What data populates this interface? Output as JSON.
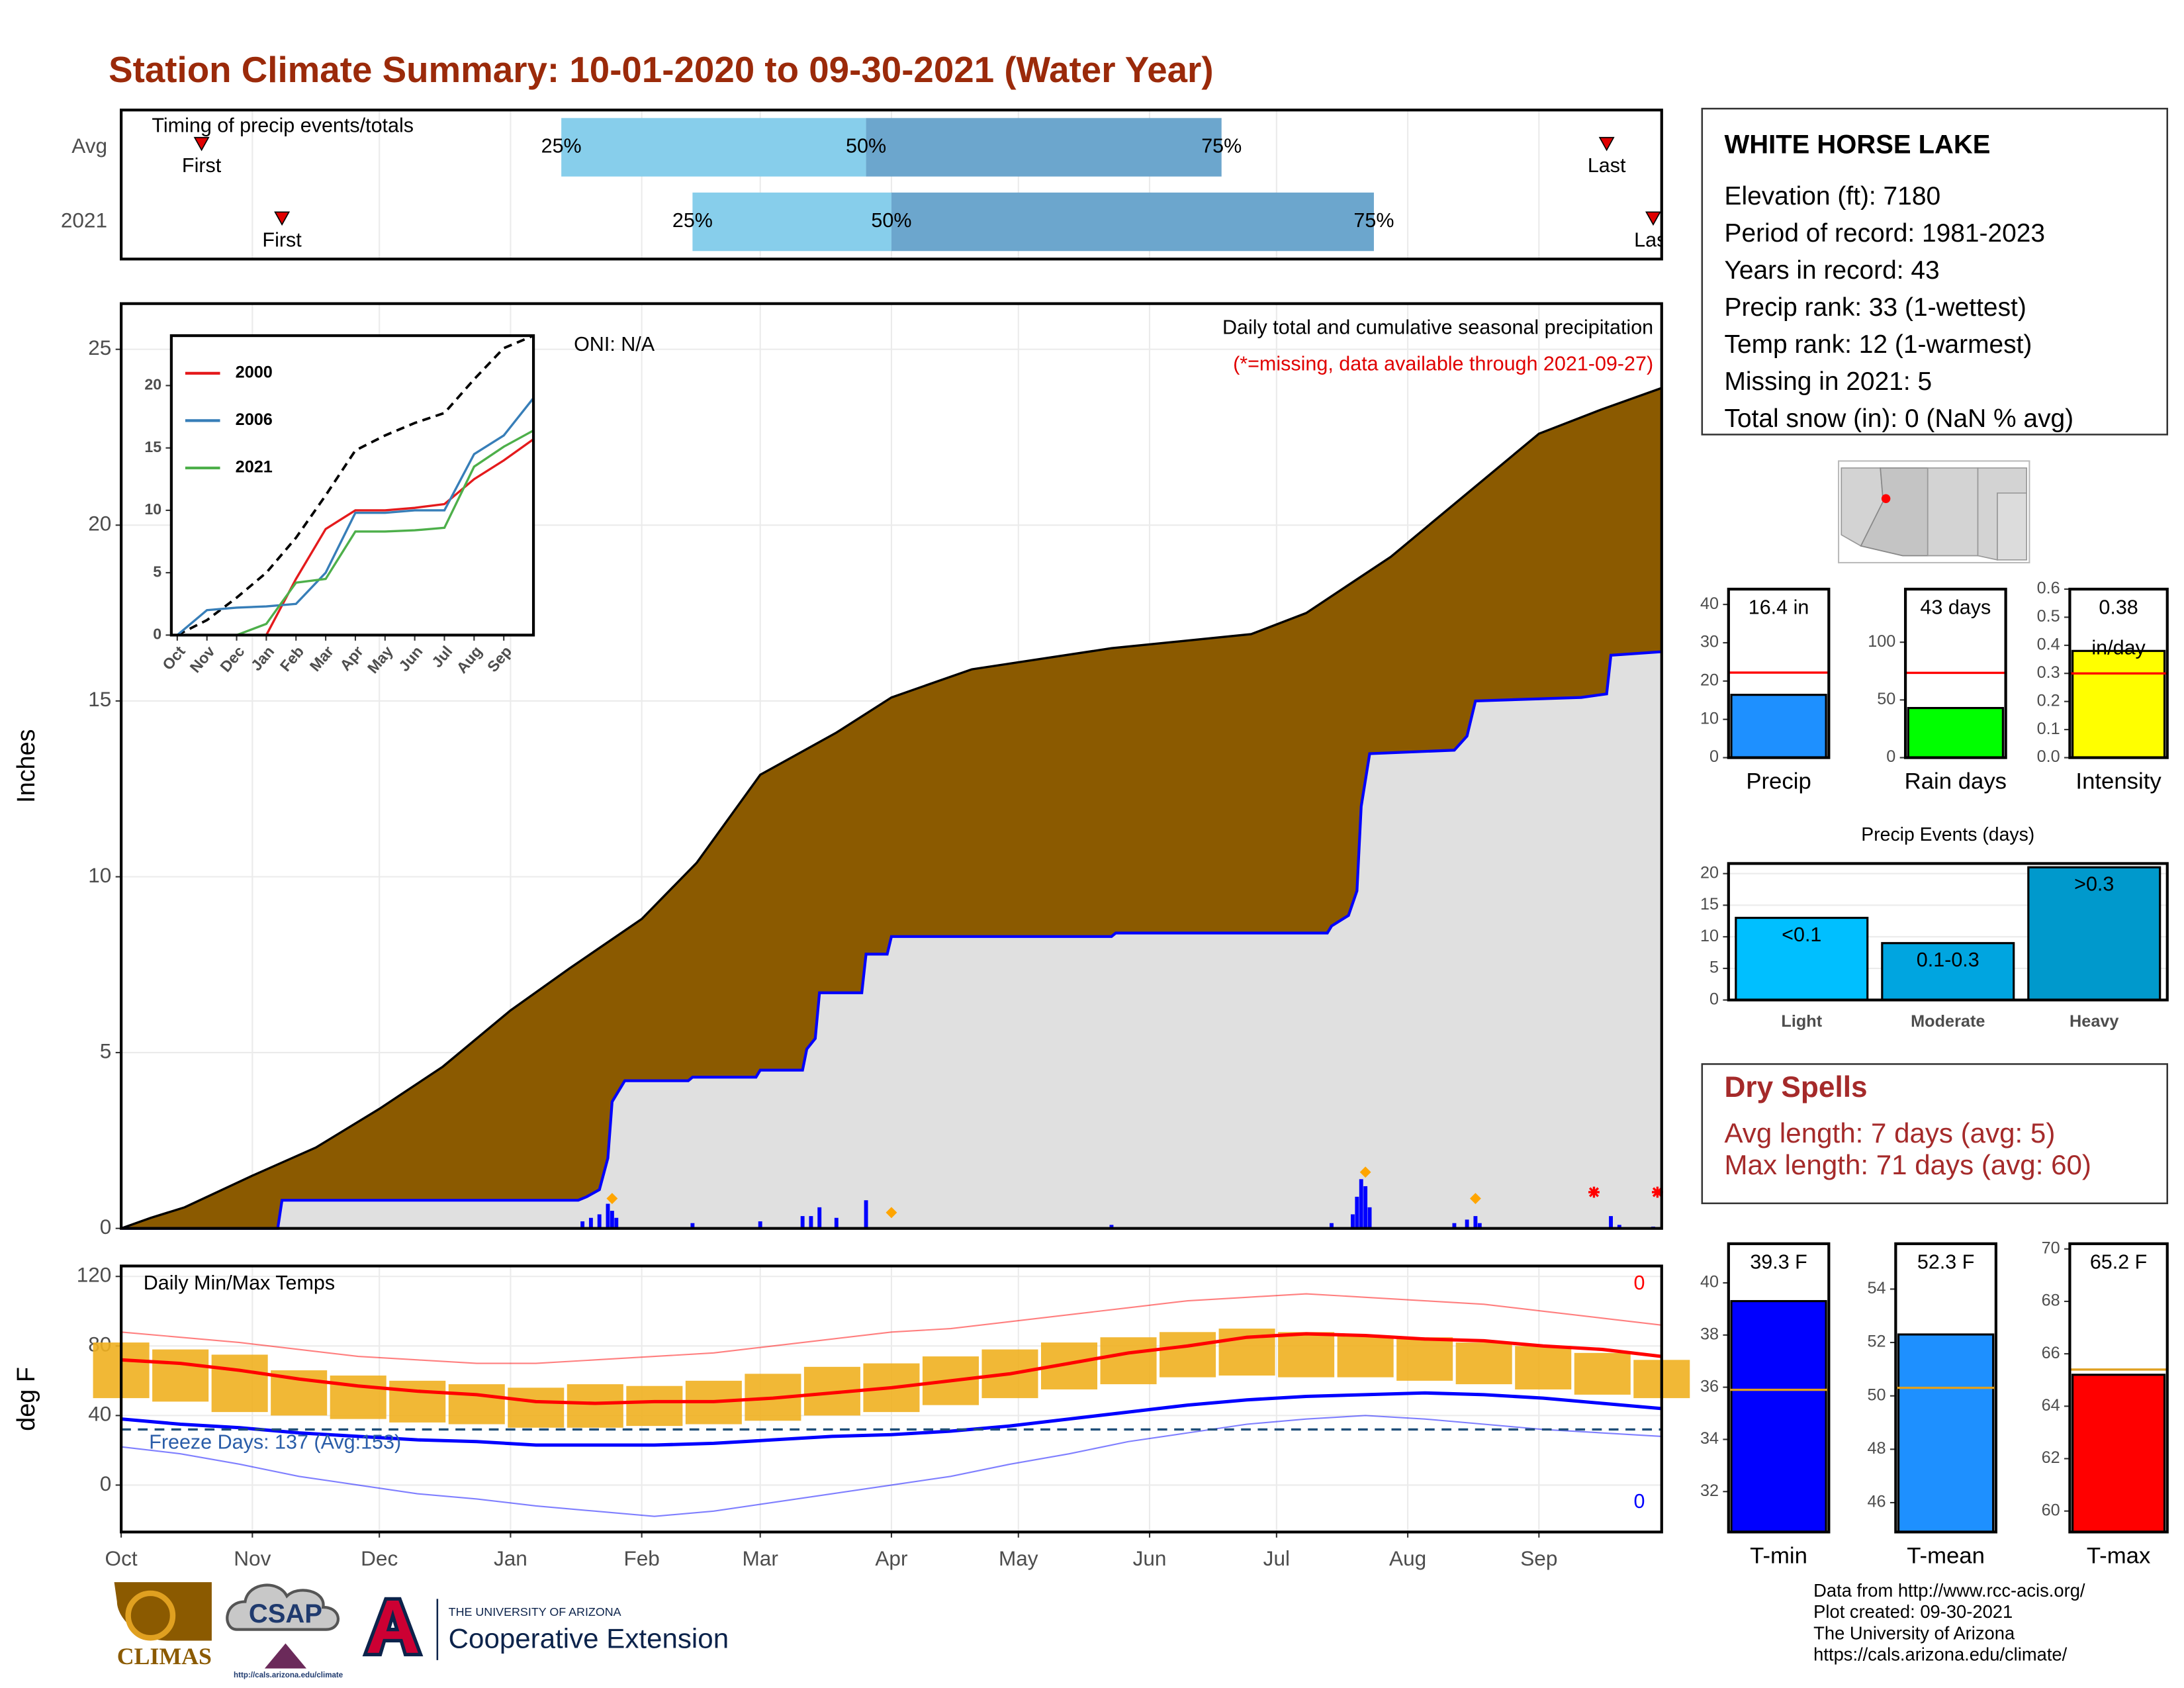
{
  "title": "Station Climate Summary: 10-01-2020 to 09-30-2021 (Water Year)",
  "station": {
    "name": "WHITE HORSE LAKE",
    "lines": [
      "Elevation (ft): 7180",
      "Period of record: 1981-2023",
      "Years in record: 43",
      "Precip rank: 33 (1-wettest)",
      "Temp rank: 12 (1-warmest)",
      "Missing in 2021: 5",
      "Total snow (in): 0 (NaN % avg)"
    ]
  },
  "dry_spells": {
    "title": "Dry Spells",
    "lines": [
      "Avg length: 7 days (avg: 5)",
      "Max length: 71 days (avg: 60)"
    ]
  },
  "footer": [
    "Data from http://www.rcc-acis.org/",
    "Plot created: 09-30-2021",
    "The University of Arizona",
    "https://cals.arizona.edu/climate/"
  ],
  "logos": {
    "climas": "CLIMAS",
    "csap": "CSAP",
    "csap_url": "http://cals.arizona.edu/climate",
    "ua": "THE UNIVERSITY OF ARIZONA",
    "extension": "Cooperative Extension"
  },
  "chart_data": [
    {
      "type": "timing",
      "title": "Timing of precip events/totals",
      "categories": [
        "Avg",
        "2021"
      ],
      "first": [
        19,
        38
      ],
      "q25": [
        104,
        135
      ],
      "q50": [
        176,
        182
      ],
      "q75": [
        260,
        296
      ],
      "last": [
        351,
        362
      ],
      "first_label": "First",
      "last_label": "Last",
      "quantile_labels": [
        "25%",
        "50%",
        "75%"
      ],
      "colors": [
        "#87ceeb",
        "#6ca6cd"
      ],
      "xlim": [
        0,
        364
      ]
    },
    {
      "type": "area",
      "title": "Daily total and cumulative seasonal precipitation",
      "subtitle": "(*=missing, data available through 2021-09-27)",
      "annotation": "ONI: N/A",
      "ylabel": "Inches",
      "xlim": [
        0,
        364
      ],
      "ylim": [
        0,
        26.3
      ],
      "yticks": [
        0,
        5,
        10,
        15,
        20,
        25
      ],
      "grid": true,
      "cumulative_avg": {
        "color": "#8b5a00",
        "x": [
          0,
          7,
          15,
          31,
          46,
          61,
          76,
          92,
          106,
          123,
          136,
          151,
          169,
          182,
          201,
          234,
          267,
          280,
          300,
          317,
          335,
          350,
          364
        ],
        "values": [
          0,
          0.3,
          0.6,
          1.5,
          2.3,
          3.4,
          4.6,
          6.2,
          7.4,
          8.8,
          10.4,
          12.9,
          14.1,
          15.1,
          15.9,
          16.5,
          16.9,
          17.5,
          19.1,
          20.8,
          22.6,
          23.3,
          23.9
        ]
      },
      "cumulative_2021": {
        "color": "#0000ff",
        "x": [
          0,
          37,
          38,
          108,
          110,
          113,
          115,
          116,
          119,
          134,
          135,
          150,
          151,
          161,
          162,
          164,
          165,
          175,
          176,
          181,
          182,
          234,
          235,
          285,
          286,
          290,
          292,
          293,
          295,
          315,
          318,
          320,
          345,
          351,
          352,
          364
        ],
        "values": [
          0,
          0,
          0.8,
          0.8,
          0.9,
          1.1,
          2.0,
          3.6,
          4.2,
          4.2,
          4.3,
          4.3,
          4.5,
          4.5,
          5.1,
          5.4,
          6.7,
          6.7,
          7.8,
          7.8,
          8.3,
          8.3,
          8.4,
          8.4,
          8.6,
          8.9,
          9.6,
          12.0,
          13.5,
          13.6,
          14.0,
          15.0,
          15.1,
          15.2,
          16.3,
          16.4
        ]
      },
      "daily": {
        "color": "#0000ff",
        "x": [
          109,
          111,
          113,
          115,
          116,
          117,
          135,
          151,
          161,
          163,
          165,
          169,
          176,
          234,
          286,
          291,
          292,
          293,
          294,
          295,
          315,
          318,
          320,
          321,
          352,
          354,
          362
        ],
        "values": [
          0.2,
          0.3,
          0.4,
          0.7,
          0.5,
          0.3,
          0.15,
          0.2,
          0.35,
          0.35,
          0.6,
          0.3,
          0.8,
          0.1,
          0.15,
          0.4,
          0.9,
          1.4,
          1.2,
          0.6,
          0.15,
          0.25,
          0.35,
          0.15,
          0.35,
          0.1,
          0.05
        ]
      },
      "markers": {
        "color": "#ffa500",
        "x": [
          116,
          182,
          294,
          320
        ],
        "values": [
          0.85,
          0.45,
          1.6,
          0.85
        ]
      },
      "missing": {
        "color": "#ff0000",
        "x": [
          348,
          363
        ]
      }
    },
    {
      "type": "line",
      "xlim": [
        -0.2,
        12
      ],
      "ylim": [
        0,
        24
      ],
      "yticks": [
        0,
        5,
        10,
        15,
        20
      ],
      "xticks": [
        {
          "value": 0,
          "label": "Oct"
        },
        {
          "value": 1,
          "label": "Nov"
        },
        {
          "value": 2,
          "label": "Dec"
        },
        {
          "value": 3,
          "label": "Jan"
        },
        {
          "value": 4,
          "label": "Feb"
        },
        {
          "value": 5,
          "label": "Mar"
        },
        {
          "value": 6,
          "label": "Apr"
        },
        {
          "value": 7,
          "label": "May"
        },
        {
          "value": 8,
          "label": "Jun"
        },
        {
          "value": 9,
          "label": "Jul"
        },
        {
          "value": 10,
          "label": "Aug"
        },
        {
          "value": 11,
          "label": "Sep"
        }
      ],
      "x": [
        0,
        1,
        2,
        3,
        4,
        5,
        6,
        7,
        8,
        9,
        10,
        11,
        12
      ],
      "series": [
        {
          "color": "#000000",
          "dash": true,
          "values": [
            0,
            1.2,
            3,
            5,
            7.8,
            11.2,
            14.8,
            16,
            17,
            17.8,
            20.5,
            23,
            24
          ]
        },
        {
          "name": "2000",
          "color": "#e41a1c",
          "values": [
            null,
            null,
            null,
            0,
            4.5,
            8.5,
            10,
            10,
            10.2,
            10.5,
            12.5,
            14,
            15.7
          ]
        },
        {
          "name": "2006",
          "color": "#377eb8",
          "values": [
            0,
            2,
            2.2,
            2.3,
            2.5,
            5,
            9.8,
            9.8,
            10,
            10,
            14.5,
            16,
            19
          ]
        },
        {
          "name": "2021",
          "color": "#4daf4a",
          "values": [
            0,
            0,
            0,
            0.9,
            4.2,
            4.5,
            8.3,
            8.3,
            8.4,
            8.6,
            13.5,
            15.1,
            16.4
          ]
        }
      ]
    },
    {
      "type": "temperature",
      "title": "Daily Min/Max Temps",
      "annotation": "Freeze Days: 137 (Avg:153)",
      "ylabel": "deg F",
      "max_record_count": 0,
      "min_record_count": 0,
      "freeze_threshold": 32,
      "xlim": [
        0,
        364
      ],
      "ylim": [
        -27,
        126
      ],
      "yticks": [
        0,
        40,
        80,
        120
      ],
      "grid": true,
      "xticks": [
        {
          "value": 0,
          "label": "Oct"
        },
        {
          "value": 31,
          "label": "Nov"
        },
        {
          "value": 61,
          "label": "Dec"
        },
        {
          "value": 92,
          "label": "Jan"
        },
        {
          "value": 123,
          "label": "Feb"
        },
        {
          "value": 151,
          "label": "Mar"
        },
        {
          "value": 182,
          "label": "Apr"
        },
        {
          "value": 212,
          "label": "May"
        },
        {
          "value": 243,
          "label": "Jun"
        },
        {
          "value": 273,
          "label": "Jul"
        },
        {
          "value": 304,
          "label": "Aug"
        },
        {
          "value": 335,
          "label": "Sep"
        }
      ],
      "x": [
        0,
        14,
        28,
        42,
        56,
        70,
        84,
        98,
        112,
        126,
        140,
        154,
        168,
        182,
        196,
        210,
        224,
        238,
        252,
        266,
        280,
        294,
        308,
        322,
        336,
        350,
        364
      ],
      "obs_color": "#f0b020",
      "obs_min": [
        50,
        48,
        42,
        40,
        38,
        36,
        35,
        33,
        33,
        34,
        35,
        37,
        40,
        42,
        46,
        50,
        55,
        58,
        62,
        63,
        62,
        62,
        60,
        58,
        55,
        52,
        50
      ],
      "obs_max": [
        82,
        78,
        75,
        66,
        63,
        60,
        58,
        56,
        58,
        57,
        60,
        64,
        68,
        70,
        74,
        78,
        82,
        85,
        88,
        90,
        88,
        86,
        85,
        82,
        80,
        76,
        72
      ],
      "avg_max": [
        72,
        70,
        66,
        61,
        57,
        54,
        52,
        48,
        47,
        48,
        48,
        50,
        53,
        56,
        60,
        64,
        70,
        76,
        80,
        85,
        87,
        86,
        84,
        83,
        80,
        78,
        74
      ],
      "avg_min": [
        38,
        35,
        33,
        30,
        28,
        26,
        25,
        23,
        23,
        23,
        24,
        26,
        28,
        29,
        31,
        34,
        38,
        42,
        46,
        49,
        51,
        52,
        53,
        52,
        50,
        47,
        44
      ],
      "record_max": [
        88,
        85,
        82,
        78,
        74,
        72,
        70,
        70,
        72,
        74,
        76,
        80,
        84,
        88,
        90,
        94,
        98,
        102,
        106,
        108,
        110,
        108,
        106,
        104,
        100,
        96,
        92
      ],
      "record_min": [
        22,
        18,
        12,
        5,
        0,
        -5,
        -8,
        -12,
        -15,
        -18,
        -15,
        -10,
        -5,
        0,
        5,
        12,
        18,
        25,
        30,
        35,
        38,
        40,
        38,
        35,
        32,
        30,
        28
      ]
    },
    {
      "type": "bar",
      "xlabel": "Precip",
      "values": [
        16.4
      ],
      "value_labels": [
        "16.4 in"
      ],
      "reference": 22.2,
      "reference_color": "#ff0000",
      "color": "#1e90ff",
      "ylim": [
        0,
        44
      ],
      "yticks": [
        0,
        10,
        20,
        30,
        40
      ]
    },
    {
      "type": "bar",
      "xlabel": "Rain days",
      "values": [
        43
      ],
      "value_labels": [
        "43 days"
      ],
      "reference": 73.5,
      "reference_color": "#ff0000",
      "color": "#00ff00",
      "ylim": [
        0,
        146
      ],
      "yticks": [
        0,
        50,
        100
      ]
    },
    {
      "type": "bar",
      "xlabel": "Intensity",
      "values": [
        0.38
      ],
      "value_labels": [
        "0.38"
      ],
      "unit_label": "in/day",
      "reference": 0.3,
      "reference_color": "#ff0000",
      "color": "#ffff00",
      "ylim": [
        0,
        0.6
      ],
      "yticks": [
        {
          "value": 0,
          "label": "0.0"
        },
        0.1,
        0.2,
        0.3,
        0.4,
        0.5,
        0.6
      ]
    },
    {
      "type": "bar",
      "title": "Precip Events (days)",
      "categories": [
        "Light",
        "Moderate",
        "Heavy"
      ],
      "values": [
        13,
        9,
        21
      ],
      "bin_labels": [
        "<0.1",
        "0.1-0.3",
        ">0.3"
      ],
      "colors": [
        "#00bfff",
        "#00a5e0",
        "#0099cc"
      ],
      "ylim": [
        0,
        21.6
      ],
      "yticks": [
        0,
        5,
        10,
        15,
        20
      ],
      "grid": true
    },
    {
      "type": "bar",
      "xlabel": "T-min",
      "values": [
        39.3
      ],
      "value_labels": [
        "39.3 F"
      ],
      "reference": 35.9,
      "reference_color": "#e0a020",
      "color": "#0000ff",
      "ylim": [
        30.45,
        41.5
      ],
      "yticks": [
        32,
        34,
        36,
        38,
        40
      ]
    },
    {
      "type": "bar",
      "xlabel": "T-mean",
      "values": [
        52.3
      ],
      "value_labels": [
        "52.3 F"
      ],
      "reference": 50.3,
      "reference_color": "#e0a020",
      "color": "#1e90ff",
      "ylim": [
        44.9,
        55.7
      ],
      "yticks": [
        46,
        48,
        50,
        52,
        54
      ]
    },
    {
      "type": "bar",
      "xlabel": "T-max",
      "values": [
        65.2
      ],
      "value_labels": [
        "65.2 F"
      ],
      "reference": 65.4,
      "reference_color": "#e0a020",
      "color": "#ff0000",
      "ylim": [
        59.2,
        70.2
      ],
      "yticks": [
        60,
        62,
        64,
        66,
        68,
        70
      ]
    }
  ]
}
